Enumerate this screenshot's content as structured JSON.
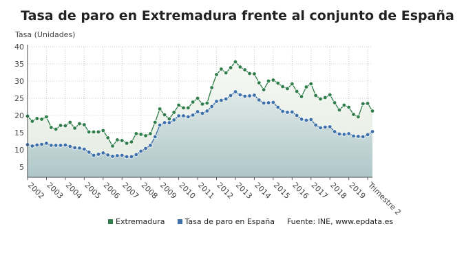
{
  "chart_data": {
    "type": "area",
    "title": "Tasa de paro en Extremadura frente al conjunto de España",
    "ylabel": "Tasa (Unidades)",
    "xlabel": "",
    "ylim": [
      2,
      40
    ],
    "yticks": [
      5,
      10,
      15,
      20,
      25,
      30,
      35,
      40
    ],
    "x_tick_labels": [
      "2002",
      "2003",
      "2004",
      "2005",
      "2006",
      "2007",
      "2008",
      "2009",
      "2010",
      "2011",
      "2012",
      "2013",
      "2014",
      "2015",
      "2016",
      "2017",
      "2018",
      "2019",
      "Trimestre 2"
    ],
    "x_frequency": "quarterly, 2002 T1 – 2020 T2",
    "grid": true,
    "legend_position": "bottom",
    "source": "Fuente: INE, www.epdata.es",
    "series": [
      {
        "name": "Extremadura",
        "color": "#2e7d4a",
        "values": [
          19.8,
          18.3,
          19.1,
          18.9,
          19.6,
          16.5,
          16.0,
          17.1,
          17.0,
          18.0,
          16.3,
          17.6,
          17.3,
          15.2,
          15.2,
          15.2,
          15.6,
          13.5,
          11.1,
          12.9,
          12.7,
          11.9,
          12.3,
          14.7,
          14.5,
          14.1,
          14.7,
          18.0,
          21.9,
          20.2,
          19.0,
          20.9,
          23.0,
          22.2,
          22.2,
          23.9,
          25.0,
          23.3,
          23.6,
          28.1,
          31.9,
          33.5,
          32.4,
          33.9,
          35.6,
          34.1,
          33.3,
          32.2,
          32.1,
          29.5,
          27.5,
          30.0,
          30.3,
          29.4,
          28.4,
          27.8,
          29.2,
          27.0,
          25.5,
          28.3,
          29.2,
          25.8,
          24.8,
          25.2,
          26.0,
          23.7,
          21.6,
          23.0,
          22.4,
          20.3,
          19.6,
          23.4,
          23.5,
          21.3
        ]
      },
      {
        "name": "Tasa de paro en España",
        "color": "#3d6fa8",
        "values": [
          11.5,
          11.1,
          11.4,
          11.6,
          11.9,
          11.3,
          11.3,
          11.3,
          11.4,
          11.0,
          10.6,
          10.5,
          10.2,
          9.3,
          8.4,
          8.7,
          9.1,
          8.5,
          8.1,
          8.3,
          8.4,
          8.0,
          8.0,
          8.6,
          9.6,
          10.4,
          11.3,
          13.8,
          17.2,
          17.9,
          17.9,
          18.7,
          19.9,
          19.9,
          19.6,
          20.1,
          21.1,
          20.6,
          21.3,
          22.6,
          24.1,
          24.4,
          24.8,
          25.8,
          26.9,
          26.0,
          25.6,
          25.7,
          25.9,
          24.5,
          23.6,
          23.7,
          23.8,
          22.4,
          21.2,
          20.9,
          21.0,
          20.0,
          18.9,
          18.6,
          18.8,
          17.2,
          16.4,
          16.6,
          16.7,
          15.3,
          14.6,
          14.5,
          14.7,
          14.0,
          13.9,
          13.8,
          14.4,
          15.3
        ]
      }
    ]
  }
}
